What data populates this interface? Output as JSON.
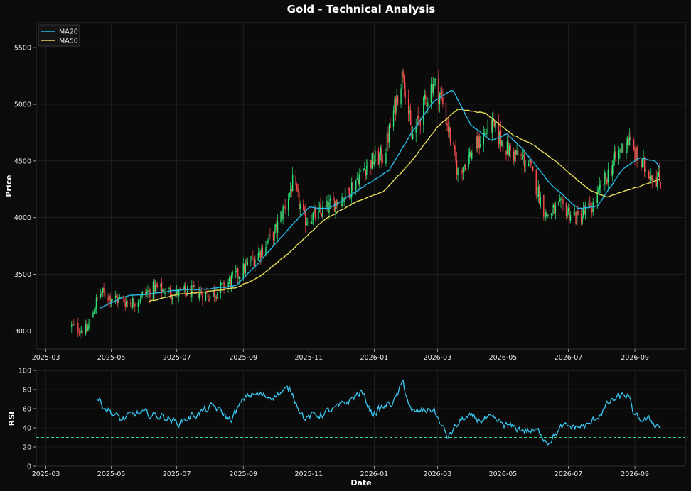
{
  "chart_data": {
    "type": "candlestick",
    "title": "Gold - Technical Analysis",
    "colors": {
      "background": "#0b0b0b",
      "panel": "#0a0a0a",
      "up": "#2ee87a",
      "down": "#ff4d4d",
      "ma20": "#27b9e6",
      "ma50": "#e8dd5a",
      "rsi": "#38c8f2",
      "overbought": "#e04545",
      "oversold": "#2ecf86",
      "grid": "#2a2a2a"
    },
    "price_panel": {
      "ylabel": "Price",
      "ylim": [
        2840,
        5720
      ],
      "yticks": [
        3000,
        3500,
        4000,
        4500,
        5000,
        5500
      ],
      "legend": {
        "placement": "top-left",
        "entries": [
          {
            "name": "MA20",
            "color": "#27b9e6"
          },
          {
            "name": "MA50",
            "color": "#e8dd5a"
          }
        ]
      },
      "key_points": [
        {
          "date": "2025-03-25",
          "close": 3040
        },
        {
          "date": "2025-04-08",
          "close": 3000
        },
        {
          "date": "2025-04-20",
          "close": 3340
        },
        {
          "date": "2025-05-06",
          "close": 3280
        },
        {
          "date": "2025-05-20",
          "close": 3250
        },
        {
          "date": "2025-06-10",
          "close": 3380
        },
        {
          "date": "2025-07-01",
          "close": 3330
        },
        {
          "date": "2025-07-20",
          "close": 3350
        },
        {
          "date": "2025-08-01",
          "close": 3310
        },
        {
          "date": "2025-08-15",
          "close": 3400
        },
        {
          "date": "2025-09-01",
          "close": 3540
        },
        {
          "date": "2025-09-15",
          "close": 3680
        },
        {
          "date": "2025-10-01",
          "close": 3880
        },
        {
          "date": "2025-10-17",
          "close": 4300
        },
        {
          "date": "2025-10-28",
          "close": 3980
        },
        {
          "date": "2025-11-15",
          "close": 4060
        },
        {
          "date": "2025-12-05",
          "close": 4200
        },
        {
          "date": "2025-12-26",
          "close": 4480
        },
        {
          "date": "2026-01-10",
          "close": 4550
        },
        {
          "date": "2026-01-28",
          "close": 5300
        },
        {
          "date": "2026-02-05",
          "close": 4700
        },
        {
          "date": "2026-02-15",
          "close": 4950
        },
        {
          "date": "2026-02-25",
          "close": 5200
        },
        {
          "date": "2026-03-05",
          "close": 5050
        },
        {
          "date": "2026-03-20",
          "close": 4400
        },
        {
          "date": "2026-04-05",
          "close": 4620
        },
        {
          "date": "2026-04-20",
          "close": 4820
        },
        {
          "date": "2026-05-05",
          "close": 4600
        },
        {
          "date": "2026-05-25",
          "close": 4480
        },
        {
          "date": "2026-06-10",
          "close": 4020
        },
        {
          "date": "2026-06-25",
          "close": 4100
        },
        {
          "date": "2026-07-10",
          "close": 3990
        },
        {
          "date": "2026-07-25",
          "close": 4120
        },
        {
          "date": "2026-08-10",
          "close": 4450
        },
        {
          "date": "2026-08-25",
          "close": 4700
        },
        {
          "date": "2026-09-05",
          "close": 4480
        },
        {
          "date": "2026-09-25",
          "close": 4320
        }
      ],
      "ma20": [
        {
          "date": "2025-04-20",
          "value": 3200
        },
        {
          "date": "2025-05-15",
          "value": 3310
        },
        {
          "date": "2025-06-10",
          "value": 3330
        },
        {
          "date": "2025-07-01",
          "value": 3360
        },
        {
          "date": "2025-08-01",
          "value": 3370
        },
        {
          "date": "2025-08-25",
          "value": 3400
        },
        {
          "date": "2025-09-15",
          "value": 3600
        },
        {
          "date": "2025-10-15",
          "value": 3920
        },
        {
          "date": "2025-11-01",
          "value": 4090
        },
        {
          "date": "2025-11-20",
          "value": 4080
        },
        {
          "date": "2025-12-15",
          "value": 4230
        },
        {
          "date": "2026-01-15",
          "value": 4420
        },
        {
          "date": "2026-02-05",
          "value": 4750
        },
        {
          "date": "2026-02-25",
          "value": 5020
        },
        {
          "date": "2026-03-15",
          "value": 5130
        },
        {
          "date": "2026-04-01",
          "value": 4820
        },
        {
          "date": "2026-04-20",
          "value": 4680
        },
        {
          "date": "2026-05-05",
          "value": 4740
        },
        {
          "date": "2026-05-20",
          "value": 4600
        },
        {
          "date": "2026-06-15",
          "value": 4290
        },
        {
          "date": "2026-07-10",
          "value": 4080
        },
        {
          "date": "2026-07-28",
          "value": 4100
        },
        {
          "date": "2026-08-20",
          "value": 4420
        },
        {
          "date": "2026-09-05",
          "value": 4530
        },
        {
          "date": "2026-09-20",
          "value": 4500
        },
        {
          "date": "2026-09-25",
          "value": 4430
        }
      ],
      "ma50": [
        {
          "date": "2025-06-05",
          "value": 3260
        },
        {
          "date": "2025-07-01",
          "value": 3320
        },
        {
          "date": "2025-08-01",
          "value": 3350
        },
        {
          "date": "2025-08-25",
          "value": 3380
        },
        {
          "date": "2025-09-15",
          "value": 3470
        },
        {
          "date": "2025-10-15",
          "value": 3700
        },
        {
          "date": "2025-11-15",
          "value": 3980
        },
        {
          "date": "2025-12-15",
          "value": 4140
        },
        {
          "date": "2026-01-10",
          "value": 4230
        },
        {
          "date": "2026-02-05",
          "value": 4500
        },
        {
          "date": "2026-03-01",
          "value": 4800
        },
        {
          "date": "2026-03-20",
          "value": 4960
        },
        {
          "date": "2026-04-15",
          "value": 4920
        },
        {
          "date": "2026-05-10",
          "value": 4730
        },
        {
          "date": "2026-05-30",
          "value": 4640
        },
        {
          "date": "2026-06-20",
          "value": 4490
        },
        {
          "date": "2026-07-20",
          "value": 4250
        },
        {
          "date": "2026-08-05",
          "value": 4180
        },
        {
          "date": "2026-08-25",
          "value": 4240
        },
        {
          "date": "2026-09-25",
          "value": 4340
        }
      ]
    },
    "rsi_panel": {
      "ylabel": "RSI",
      "ylim": [
        0,
        100
      ],
      "yticks": [
        0,
        20,
        40,
        60,
        80,
        100
      ],
      "overbought": 70,
      "oversold": 30,
      "key_points": [
        {
          "date": "2025-04-18",
          "value": 70
        },
        {
          "date": "2025-04-25",
          "value": 62
        },
        {
          "date": "2025-05-10",
          "value": 48
        },
        {
          "date": "2025-05-25",
          "value": 55
        },
        {
          "date": "2025-06-20",
          "value": 52
        },
        {
          "date": "2025-07-01",
          "value": 45
        },
        {
          "date": "2025-07-20",
          "value": 55
        },
        {
          "date": "2025-08-05",
          "value": 62
        },
        {
          "date": "2025-08-20",
          "value": 48
        },
        {
          "date": "2025-09-05",
          "value": 75
        },
        {
          "date": "2025-09-25",
          "value": 73
        },
        {
          "date": "2025-10-15",
          "value": 80
        },
        {
          "date": "2025-10-28",
          "value": 50
        },
        {
          "date": "2025-11-15",
          "value": 55
        },
        {
          "date": "2025-12-01",
          "value": 62
        },
        {
          "date": "2025-12-20",
          "value": 78
        },
        {
          "date": "2025-12-30",
          "value": 55
        },
        {
          "date": "2026-01-20",
          "value": 68
        },
        {
          "date": "2026-01-28",
          "value": 87
        },
        {
          "date": "2026-02-05",
          "value": 55
        },
        {
          "date": "2026-02-25",
          "value": 60
        },
        {
          "date": "2026-03-10",
          "value": 30
        },
        {
          "date": "2026-03-25",
          "value": 50
        },
        {
          "date": "2026-04-20",
          "value": 48
        },
        {
          "date": "2026-05-10",
          "value": 40
        },
        {
          "date": "2026-06-05",
          "value": 35
        },
        {
          "date": "2026-06-12",
          "value": 26
        },
        {
          "date": "2026-06-25",
          "value": 40
        },
        {
          "date": "2026-07-20",
          "value": 42
        },
        {
          "date": "2026-08-10",
          "value": 68
        },
        {
          "date": "2026-08-25",
          "value": 75
        },
        {
          "date": "2026-09-01",
          "value": 50
        },
        {
          "date": "2026-09-15",
          "value": 47
        },
        {
          "date": "2026-09-25",
          "value": 42
        }
      ]
    },
    "xaxis": {
      "xlabel": "Date",
      "xlim": [
        "2025-02-20",
        "2026-10-18"
      ],
      "ticks": [
        "2025-03",
        "2025-05",
        "2025-07",
        "2025-09",
        "2025-11",
        "2026-01",
        "2026-03",
        "2026-05",
        "2026-07",
        "2026-09"
      ]
    }
  }
}
